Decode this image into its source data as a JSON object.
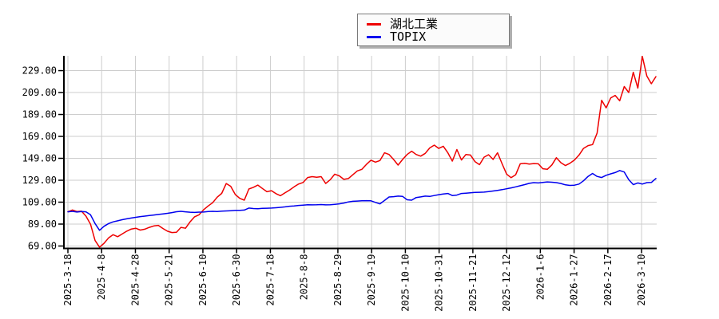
{
  "chart_data": {
    "type": "line",
    "title": "",
    "grid": true,
    "legend_position": "top-center",
    "legend": [
      {
        "label": "湖北工業",
        "color": "#ee0000"
      },
      {
        "label": "TOPIX",
        "color": "#0000ee"
      }
    ],
    "ylim": [
      66.8,
      242.5
    ],
    "y_ticks": [
      69,
      89,
      109,
      129,
      149,
      169,
      189,
      209,
      229
    ],
    "y_tick_labels": [
      "69.00",
      "89.00",
      "109.00",
      "129.00",
      "149.00",
      "169.00",
      "189.00",
      "209.00",
      "229.00"
    ],
    "x_tick_labels": [
      "2025-3-18",
      "2025-4-8",
      "2025-4-28",
      "2025-5-21",
      "2025-6-10",
      "2025-6-30",
      "2025-7-18",
      "2025-8-8",
      "2025-8-29",
      "2025-9-19",
      "2025-10-10",
      "2025-10-31",
      "2025-11-21",
      "2025-12-12",
      "2026-1-6",
      "2026-1-27",
      "2026-2-17",
      "2026-3-10"
    ],
    "series": [
      {
        "name": "湖北工業",
        "color": "#ee0000",
        "values": [
          100.3,
          101.9,
          100.5,
          100.8,
          96.3,
          88.9,
          74.0,
          68.0,
          71.5,
          76.5,
          79.3,
          77.5,
          80.0,
          82.5,
          84.5,
          85.2,
          83.5,
          84.3,
          86.0,
          87.3,
          87.8,
          85.0,
          82.5,
          81.3,
          81.6,
          86.0,
          85.2,
          91.0,
          95.6,
          97.5,
          102.0,
          105.5,
          108.5,
          113.5,
          117.0,
          126.0,
          123.5,
          116.0,
          112.5,
          110.8,
          121.0,
          122.5,
          124.6,
          121.5,
          118.5,
          119.5,
          116.8,
          114.9,
          117.5,
          120.0,
          123.0,
          125.5,
          127.0,
          131.5,
          132.3,
          131.8,
          132.3,
          126.0,
          129.5,
          134.5,
          133.0,
          129.8,
          130.5,
          134.0,
          137.5,
          139.0,
          143.5,
          147.3,
          145.5,
          147.0,
          154.0,
          152.5,
          148.0,
          142.8,
          148.0,
          152.5,
          155.5,
          152.5,
          151.0,
          153.5,
          158.5,
          161.0,
          158.0,
          160.0,
          154.0,
          146.5,
          157.0,
          147.5,
          152.5,
          152.0,
          146.0,
          143.2,
          150.0,
          152.3,
          148.0,
          154.0,
          144.0,
          134.5,
          131.3,
          134.0,
          144.0,
          144.5,
          143.8,
          144.2,
          144.0,
          139.5,
          139.0,
          143.0,
          149.5,
          145.0,
          142.4,
          144.5,
          147.5,
          152.0,
          158.0,
          160.6,
          161.5,
          172.0,
          202.0,
          195.0,
          204.0,
          206.4,
          201.5,
          214.5,
          209.0,
          227.5,
          213.0,
          242.0,
          224.0,
          217.0,
          223.5
        ]
      },
      {
        "name": "TOPIX",
        "color": "#0000ee",
        "values": [
          100.2,
          100.6,
          100.0,
          100.5,
          100.2,
          97.5,
          89.5,
          83.3,
          87.0,
          89.5,
          91.0,
          92.0,
          93.0,
          93.8,
          94.5,
          95.2,
          95.8,
          96.3,
          96.8,
          97.3,
          97.8,
          98.3,
          98.8,
          99.5,
          100.3,
          100.6,
          100.2,
          99.8,
          99.6,
          99.9,
          100.0,
          100.4,
          100.6,
          100.5,
          100.8,
          101.0,
          101.2,
          101.5,
          101.6,
          101.8,
          103.6,
          103.2,
          103.0,
          103.3,
          103.5,
          103.6,
          103.9,
          104.3,
          104.7,
          105.3,
          105.5,
          106.0,
          106.3,
          106.6,
          106.5,
          106.6,
          106.8,
          106.5,
          106.7,
          107.0,
          107.5,
          108.2,
          109.2,
          109.8,
          110.0,
          110.3,
          110.4,
          110.2,
          108.8,
          107.5,
          110.5,
          113.7,
          114.0,
          114.5,
          114.2,
          111.2,
          110.8,
          113.2,
          113.8,
          114.5,
          114.2,
          115.0,
          115.8,
          116.5,
          116.9,
          115.0,
          115.5,
          116.9,
          117.2,
          117.6,
          117.9,
          118.0,
          118.2,
          118.6,
          119.2,
          119.8,
          120.4,
          121.2,
          122.0,
          123.0,
          124.0,
          125.0,
          126.2,
          126.8,
          126.5,
          127.0,
          127.5,
          127.2,
          126.8,
          126.0,
          124.8,
          124.3,
          124.5,
          125.5,
          128.5,
          132.5,
          135.2,
          132.5,
          131.5,
          133.5,
          134.8,
          136.0,
          137.9,
          136.5,
          129.5,
          125.0,
          126.5,
          125.5,
          126.8,
          127.0,
          130.6
        ]
      }
    ],
    "colors": {
      "grid": "#cdcdcd",
      "axis": "#000000",
      "background": "#ffffff"
    }
  }
}
